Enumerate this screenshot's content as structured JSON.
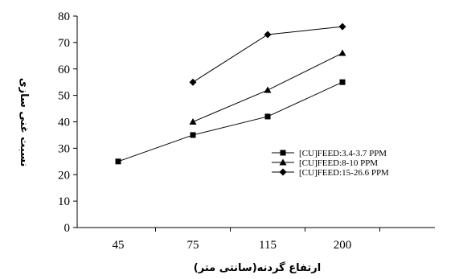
{
  "chart_data": {
    "type": "line",
    "categories": [
      "45",
      "75",
      "115",
      "200"
    ],
    "xlabel": "ارتفاع گردنه(سانتی متر)",
    "ylabel": "نسبت غنی سازی",
    "ylim": [
      0,
      80
    ],
    "yticks": [
      0,
      10,
      20,
      30,
      40,
      50,
      60,
      70,
      80
    ],
    "grid": false,
    "legend_position": "right",
    "series": [
      {
        "name": "[CU]FEED:3.4-3.7 PPM",
        "marker": "square",
        "color": "#000000",
        "values": [
          25,
          35,
          42,
          55
        ]
      },
      {
        "name": "[CU]FEED:8-10 PPM",
        "marker": "triangle",
        "color": "#000000",
        "values": [
          null,
          40,
          52,
          66
        ]
      },
      {
        "name": "[CU]FEED:15-26.6 PPM",
        "marker": "diamond",
        "color": "#000000",
        "values": [
          null,
          55,
          73,
          76
        ]
      }
    ]
  }
}
